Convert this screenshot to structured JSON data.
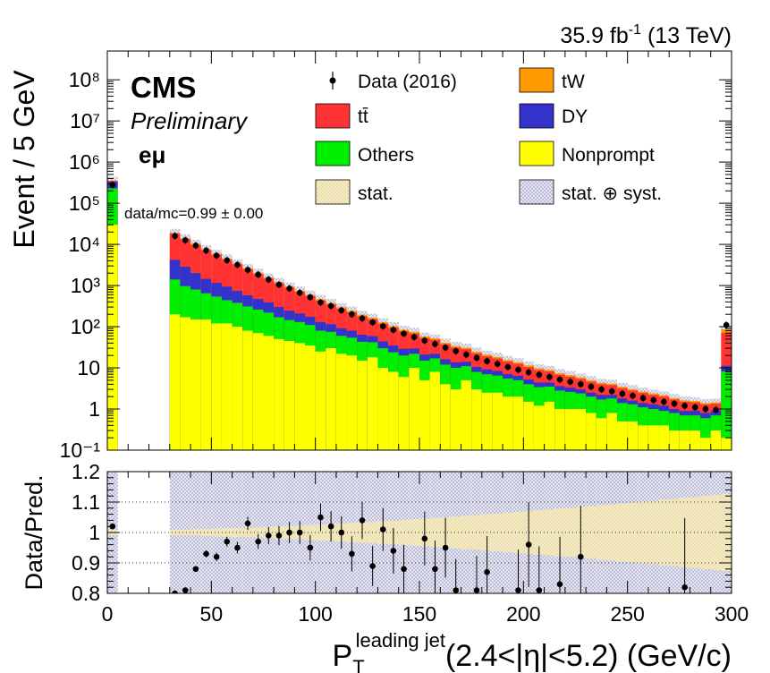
{
  "header": {
    "lumi_text": "35.9 fb",
    "lumi_sup": "-1",
    "lumi_suffix": " (13 TeV)"
  },
  "labels": {
    "experiment": "CMS",
    "status": "Preliminary",
    "channel": "eμ",
    "data_mc": "data/mc=0.99 ± 0.00"
  },
  "legend": {
    "data": "Data (2016)",
    "ttbar": "tt̄",
    "others": "Others",
    "stat": "stat.",
    "tw": "tW",
    "dy": "DY",
    "nonprompt": "Nonprompt",
    "stat_syst": "stat. ⊕ syst."
  },
  "axes": {
    "top_ylabel": "Event / 5 GeV",
    "bottom_ylabel": "Data/Pred.",
    "xlabel_main": "P",
    "xlabel_sub": "T",
    "xlabel_sup": "leading jet",
    "xlabel_rest": "(2.4<|η|<5.2) (GeV/c)"
  },
  "colors": {
    "ttbar": "#ff3333",
    "dy": "#3333cc",
    "others": "#00ee00",
    "nonprompt": "#ffff00",
    "tw": "#ff9900",
    "stat": "#f0e3b0",
    "syst": "#8888bb"
  },
  "chart_data": [
    {
      "type": "bar",
      "stacked": true,
      "log_y": true,
      "ylim": [
        0.1,
        500000000
      ],
      "xlim": [
        0,
        300
      ],
      "bin_width": 5,
      "y_ticks": [
        "10⁻¹",
        "1",
        "10",
        "10²",
        "10³",
        "10⁴",
        "10⁵",
        "10⁶",
        "10⁷",
        "10⁸"
      ],
      "x_ticks": [
        "0",
        "50",
        "100",
        "150",
        "200",
        "250",
        "300"
      ],
      "x_bin_low": [
        0,
        5,
        10,
        15,
        20,
        25,
        30,
        35,
        40,
        45,
        50,
        55,
        60,
        65,
        70,
        75,
        80,
        85,
        90,
        95,
        100,
        105,
        110,
        115,
        120,
        125,
        130,
        135,
        140,
        145,
        150,
        155,
        160,
        165,
        170,
        175,
        180,
        185,
        190,
        195,
        200,
        205,
        210,
        215,
        220,
        225,
        230,
        235,
        240,
        245,
        250,
        255,
        260,
        265,
        270,
        275,
        280,
        285,
        290,
        295
      ],
      "series": [
        {
          "name": "Nonprompt",
          "values": [
            30000,
            0,
            0,
            0,
            0,
            0,
            200,
            170,
            150,
            150,
            120,
            120,
            100,
            80,
            70,
            60,
            50,
            45,
            40,
            35,
            25,
            30,
            22,
            20,
            15,
            18,
            10,
            8,
            6,
            10,
            5,
            8,
            4,
            3,
            5,
            3,
            2.5,
            2.5,
            2,
            2,
            1.5,
            1.2,
            1.5,
            1,
            1,
            1,
            0.8,
            0.6,
            0.8,
            0.5,
            0.5,
            0.4,
            0.4,
            0.4,
            0.3,
            0.3,
            0.3,
            0.2,
            0.3,
            0.2
          ]
        },
        {
          "name": "Others",
          "values": [
            200000,
            0,
            0,
            0,
            0,
            0,
            1200,
            800,
            650,
            500,
            420,
            320,
            280,
            230,
            190,
            160,
            120,
            100,
            90,
            75,
            55,
            45,
            38,
            34,
            28,
            24,
            20,
            16,
            14,
            12,
            10,
            9,
            8,
            7,
            6,
            5,
            4.5,
            4,
            3.5,
            3,
            2.5,
            2.2,
            2,
            1.8,
            1.6,
            1.4,
            1.2,
            1.1,
            1,
            0.9,
            0.8,
            0.7,
            0.6,
            0.5,
            0.5,
            0.4,
            0.4,
            0.4,
            0.4,
            8
          ]
        },
        {
          "name": "DY",
          "values": [
            100000,
            0,
            0,
            0,
            0,
            0,
            2800,
            1900,
            1200,
            800,
            620,
            500,
            360,
            270,
            210,
            170,
            130,
            100,
            80,
            65,
            50,
            40,
            32,
            26,
            21,
            17,
            14,
            11,
            9,
            7.5,
            6,
            5,
            4.2,
            3.6,
            3,
            2.5,
            2.2,
            1.9,
            1.6,
            1.4,
            1.2,
            1,
            0.9,
            0.8,
            0.7,
            0.6,
            0.5,
            0.5,
            0.4,
            0.4,
            0.3,
            0.3,
            0.3,
            0.3,
            0.2,
            0.2,
            0.2,
            0.2,
            0.2,
            3
          ]
        },
        {
          "name": "tt̄",
          "values": [
            20000,
            0,
            0,
            0,
            0,
            0,
            14000,
            10500,
            7800,
            5800,
            4400,
            3300,
            2500,
            1900,
            1420,
            1080,
            830,
            640,
            490,
            380,
            300,
            232,
            182,
            145,
            115,
            92,
            74,
            60,
            48,
            39,
            32,
            26,
            21,
            17.5,
            14.5,
            12,
            10,
            8.5,
            7.2,
            6.2,
            5.3,
            4.5,
            3.8,
            3.2,
            2.8,
            2.4,
            2.1,
            1.8,
            1.6,
            1.4,
            1.2,
            1.05,
            0.9,
            0.8,
            0.7,
            0.6,
            0.55,
            0.5,
            0.45,
            60
          ]
        },
        {
          "name": "tW",
          "values": [
            5000,
            0,
            0,
            0,
            0,
            0,
            1000,
            780,
            600,
            470,
            365,
            285,
            225,
            178,
            140,
            112,
            89,
            71,
            57,
            46,
            37,
            30,
            24,
            20,
            16.5,
            13.5,
            11,
            9,
            7.5,
            6.2,
            5.1,
            4.3,
            3.6,
            3,
            2.5,
            2.1,
            1.8,
            1.5,
            1.3,
            1.1,
            1,
            0.85,
            0.72,
            0.62,
            0.54,
            0.46,
            0.4,
            0.35,
            0.3,
            0.26,
            0.23,
            0.2,
            0.18,
            0.16,
            0.14,
            0.12,
            0.11,
            0.1,
            0.09,
            15
          ]
        },
        {
          "name": "Data (2016)",
          "values": [
            280000,
            0,
            0,
            0,
            0,
            0,
            16000,
            12600,
            9400,
            7100,
            5350,
            4100,
            3200,
            2400,
            1850,
            1400,
            1050,
            850,
            670,
            520,
            390,
            320,
            250,
            200,
            160,
            128,
            103,
            84,
            68,
            56,
            46,
            38,
            31,
            25.5,
            21,
            17.5,
            14.5,
            12.5,
            10.5,
            9,
            7.8,
            6.8,
            6,
            5.2,
            4.6,
            4,
            3.5,
            3,
            2.7,
            2.35,
            2.1,
            1.85,
            1.65,
            1.5,
            1.35,
            1.2,
            1.1,
            1,
            0.95,
            110
          ]
        }
      ]
    },
    {
      "type": "scatter",
      "ylim": [
        0.8,
        1.2
      ],
      "xlim": [
        0,
        300
      ],
      "y_ticks": [
        "0.8",
        "0.9",
        "1",
        "1.1",
        "1.2"
      ],
      "x_ticks": [
        "0",
        "50",
        "100",
        "150",
        "200",
        "250",
        "300"
      ],
      "x": [
        2.5,
        32.5,
        37.5,
        42.5,
        47.5,
        52.5,
        57.5,
        62.5,
        67.5,
        72.5,
        77.5,
        82.5,
        87.5,
        92.5,
        97.5,
        102.5,
        107.5,
        112.5,
        117.5,
        122.5,
        127.5,
        132.5,
        137.5,
        142.5,
        152.5,
        157.5,
        162.5,
        167.5,
        177.5,
        182.5,
        197.5,
        202.5,
        207.5,
        217.5,
        227.5,
        277.5
      ],
      "y": [
        1.02,
        0.8,
        0.81,
        0.88,
        0.93,
        0.92,
        0.97,
        0.95,
        1.03,
        0.97,
        0.99,
        0.99,
        1.0,
        1.0,
        0.95,
        1.05,
        1.02,
        1.0,
        0.93,
        1.04,
        0.89,
        1.01,
        0.94,
        0.88,
        0.98,
        0.88,
        0.95,
        0.81,
        0.81,
        0.87,
        0.81,
        0.96,
        0.81,
        0.83,
        0.92,
        0.82
      ]
    }
  ]
}
